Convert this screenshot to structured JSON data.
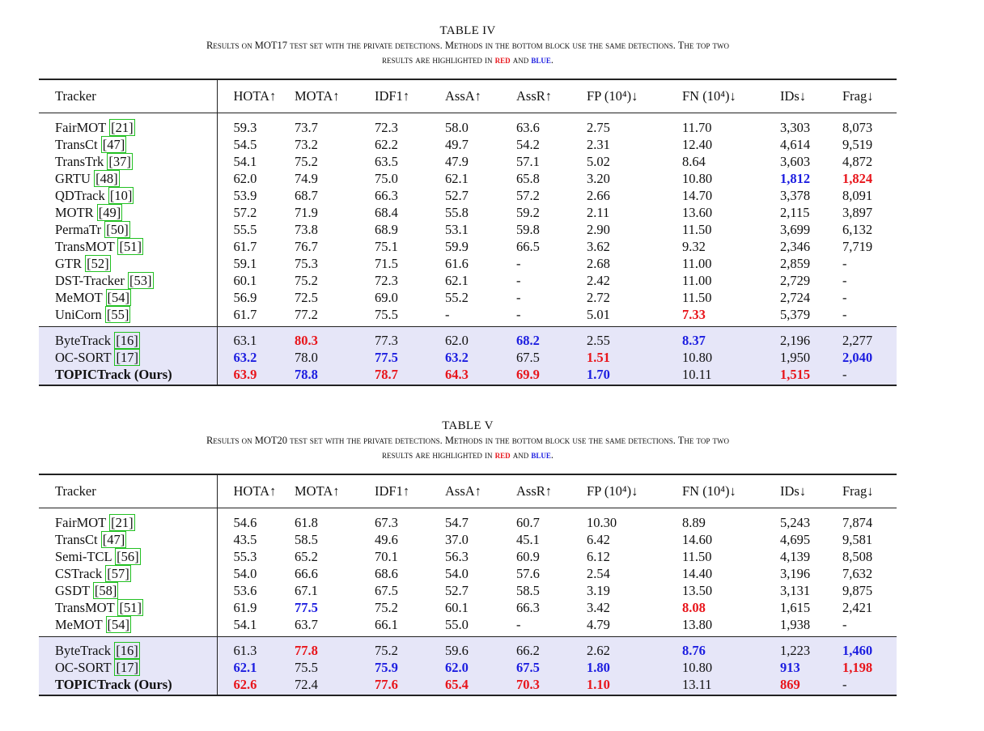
{
  "tables": [
    {
      "label": "TABLE IV",
      "caption_line1": "Results on MOT17 test set with the private detections. Methods in the bottom block use the same detections. The top two",
      "caption_line2_prefix": "results are highlighted in ",
      "caption_red": "red",
      "caption_and": " and ",
      "caption_blue": "blue",
      "caption_end": ".",
      "headers": [
        "Tracker",
        "HOTA↑",
        "MOTA↑",
        "IDF1↑",
        "AssA↑",
        "AssR↑",
        "FP (10⁴)↓",
        "FN (10⁴)↓",
        "IDs↓",
        "Frag↓"
      ],
      "top_rows": [
        {
          "name": "FairMOT",
          "ref": "21",
          "cells": [
            "59.3",
            "73.7",
            "72.3",
            "58.0",
            "63.6",
            "2.75",
            "11.70",
            "3,303",
            "8,073"
          ]
        },
        {
          "name": "TransCt",
          "ref": "47",
          "cells": [
            "54.5",
            "73.2",
            "62.2",
            "49.7",
            "54.2",
            "2.31",
            "12.40",
            "4,614",
            "9,519"
          ]
        },
        {
          "name": "TransTrk",
          "ref": "37",
          "cells": [
            "54.1",
            "75.2",
            "63.5",
            "47.9",
            "57.1",
            "5.02",
            "8.64",
            "3,603",
            "4,872"
          ]
        },
        {
          "name": "GRTU",
          "ref": "48",
          "cells": [
            "62.0",
            "74.9",
            "75.0",
            "62.1",
            "65.8",
            "3.20",
            "10.80",
            "1,812",
            "1,824"
          ]
        },
        {
          "name": "QDTrack",
          "ref": "10",
          "cells": [
            "53.9",
            "68.7",
            "66.3",
            "52.7",
            "57.2",
            "2.66",
            "14.70",
            "3,378",
            "8,091"
          ]
        },
        {
          "name": "MOTR",
          "ref": "49",
          "cells": [
            "57.2",
            "71.9",
            "68.4",
            "55.8",
            "59.2",
            "2.11",
            "13.60",
            "2,115",
            "3,897"
          ]
        },
        {
          "name": "PermaTr",
          "ref": "50",
          "cells": [
            "55.5",
            "73.8",
            "68.9",
            "53.1",
            "59.8",
            "2.90",
            "11.50",
            "3,699",
            "6,132"
          ]
        },
        {
          "name": "TransMOT",
          "ref": "51",
          "cells": [
            "61.7",
            "76.7",
            "75.1",
            "59.9",
            "66.5",
            "3.62",
            "9.32",
            "2,346",
            "7,719"
          ]
        },
        {
          "name": "GTR",
          "ref": "52",
          "cells": [
            "59.1",
            "75.3",
            "71.5",
            "61.6",
            "-",
            "2.68",
            "11.00",
            "2,859",
            "-"
          ]
        },
        {
          "name": "DST-Tracker",
          "ref": "53",
          "cells": [
            "60.1",
            "75.2",
            "72.3",
            "62.1",
            "-",
            "2.42",
            "11.00",
            "2,729",
            "-"
          ]
        },
        {
          "name": "MeMOT",
          "ref": "54",
          "cells": [
            "56.9",
            "72.5",
            "69.0",
            "55.2",
            "-",
            "2.72",
            "11.50",
            "2,724",
            "-"
          ]
        },
        {
          "name": "UniCorn",
          "ref": "55",
          "cells": [
            "61.7",
            "77.2",
            "75.5",
            "-",
            "-",
            "5.01",
            "7.33",
            "5,379",
            "-"
          ]
        }
      ],
      "top_marks": [
        [],
        [],
        [],
        [
          {
            "col": 7,
            "c": "blue"
          },
          {
            "col": 8,
            "c": "red"
          }
        ],
        [],
        [],
        [],
        [],
        [],
        [],
        [],
        [
          {
            "col": 6,
            "c": "red"
          }
        ]
      ],
      "bottom_rows": [
        {
          "name": "ByteTrack",
          "ref": "16",
          "cells": [
            "63.1",
            "80.3",
            "77.3",
            "62.0",
            "68.2",
            "2.55",
            "8.37",
            "2,196",
            "2,277"
          ]
        },
        {
          "name": "OC-SORT",
          "ref": "17",
          "cells": [
            "63.2",
            "78.0",
            "77.5",
            "63.2",
            "67.5",
            "1.51",
            "10.80",
            "1,950",
            "2,040"
          ]
        },
        {
          "name": "TOPICTrack (Ours)",
          "ref": "",
          "cells": [
            "63.9",
            "78.8",
            "78.7",
            "64.3",
            "69.9",
            "1.70",
            "10.11",
            "1,515",
            "-"
          ]
        }
      ],
      "bottom_marks": [
        [
          {
            "col": 1,
            "c": "red"
          },
          {
            "col": 4,
            "c": "blue"
          },
          {
            "col": 6,
            "c": "blue"
          }
        ],
        [
          {
            "col": 0,
            "c": "blue"
          },
          {
            "col": 2,
            "c": "blue"
          },
          {
            "col": 3,
            "c": "blue"
          },
          {
            "col": 5,
            "c": "red"
          },
          {
            "col": 8,
            "c": "blue"
          }
        ],
        [
          {
            "col": 0,
            "c": "red"
          },
          {
            "col": 1,
            "c": "blue"
          },
          {
            "col": 2,
            "c": "red"
          },
          {
            "col": 3,
            "c": "red"
          },
          {
            "col": 4,
            "c": "red"
          },
          {
            "col": 5,
            "c": "blue"
          },
          {
            "col": 7,
            "c": "red"
          }
        ]
      ]
    },
    {
      "label": "TABLE V",
      "caption_line1": "Results on MOT20 test set with the private detections. Methods in the bottom block use the same detections. The top two",
      "caption_line2_prefix": "results are highlighted in ",
      "caption_red": "red",
      "caption_and": " and ",
      "caption_blue": "blue",
      "caption_end": ".",
      "headers": [
        "Tracker",
        "HOTA↑",
        "MOTA↑",
        "IDF1↑",
        "AssA↑",
        "AssR↑",
        "FP (10⁴)↓",
        "FN (10⁴)↓",
        "IDs↓",
        "Frag↓"
      ],
      "top_rows": [
        {
          "name": "FairMOT",
          "ref": "21",
          "cells": [
            "54.6",
            "61.8",
            "67.3",
            "54.7",
            "60.7",
            "10.30",
            "8.89",
            "5,243",
            "7,874"
          ]
        },
        {
          "name": "TransCt",
          "ref": "47",
          "cells": [
            "43.5",
            "58.5",
            "49.6",
            "37.0",
            "45.1",
            "6.42",
            "14.60",
            "4,695",
            "9,581"
          ]
        },
        {
          "name": "Semi-TCL",
          "ref": "56",
          "cells": [
            "55.3",
            "65.2",
            "70.1",
            "56.3",
            "60.9",
            "6.12",
            "11.50",
            "4,139",
            "8,508"
          ]
        },
        {
          "name": "CSTrack",
          "ref": "57",
          "cells": [
            "54.0",
            "66.6",
            "68.6",
            "54.0",
            "57.6",
            "2.54",
            "14.40",
            "3,196",
            "7,632"
          ]
        },
        {
          "name": "GSDT",
          "ref": "58",
          "cells": [
            "53.6",
            "67.1",
            "67.5",
            "52.7",
            "58.5",
            "3.19",
            "13.50",
            "3,131",
            "9,875"
          ]
        },
        {
          "name": "TransMOT",
          "ref": "51",
          "cells": [
            "61.9",
            "77.5",
            "75.2",
            "60.1",
            "66.3",
            "3.42",
            "8.08",
            "1,615",
            "2,421"
          ]
        },
        {
          "name": "MeMOT",
          "ref": "54",
          "cells": [
            "54.1",
            "63.7",
            "66.1",
            "55.0",
            "-",
            "4.79",
            "13.80",
            "1,938",
            "-"
          ]
        }
      ],
      "top_marks": [
        [],
        [],
        [],
        [],
        [],
        [
          {
            "col": 1,
            "c": "blue"
          },
          {
            "col": 6,
            "c": "red"
          }
        ],
        []
      ],
      "bottom_rows": [
        {
          "name": "ByteTrack",
          "ref": "16",
          "cells": [
            "61.3",
            "77.8",
            "75.2",
            "59.6",
            "66.2",
            "2.62",
            "8.76",
            "1,223",
            "1,460"
          ]
        },
        {
          "name": "OC-SORT",
          "ref": "17",
          "cells": [
            "62.1",
            "75.5",
            "75.9",
            "62.0",
            "67.5",
            "1.80",
            "10.80",
            "913",
            "1,198"
          ]
        },
        {
          "name": "TOPICTrack (Ours)",
          "ref": "",
          "cells": [
            "62.6",
            "72.4",
            "77.6",
            "65.4",
            "70.3",
            "1.10",
            "13.11",
            "869",
            "-"
          ]
        }
      ],
      "bottom_marks": [
        [
          {
            "col": 1,
            "c": "red"
          },
          {
            "col": 6,
            "c": "blue"
          },
          {
            "col": 8,
            "c": "blue"
          }
        ],
        [
          {
            "col": 0,
            "c": "blue"
          },
          {
            "col": 2,
            "c": "blue"
          },
          {
            "col": 3,
            "c": "blue"
          },
          {
            "col": 4,
            "c": "blue"
          },
          {
            "col": 5,
            "c": "blue"
          },
          {
            "col": 7,
            "c": "blue"
          },
          {
            "col": 8,
            "c": "red"
          }
        ],
        [
          {
            "col": 0,
            "c": "red"
          },
          {
            "col": 2,
            "c": "red"
          },
          {
            "col": 3,
            "c": "red"
          },
          {
            "col": 4,
            "c": "red"
          },
          {
            "col": 5,
            "c": "red"
          },
          {
            "col": 7,
            "c": "red"
          }
        ]
      ]
    }
  ]
}
